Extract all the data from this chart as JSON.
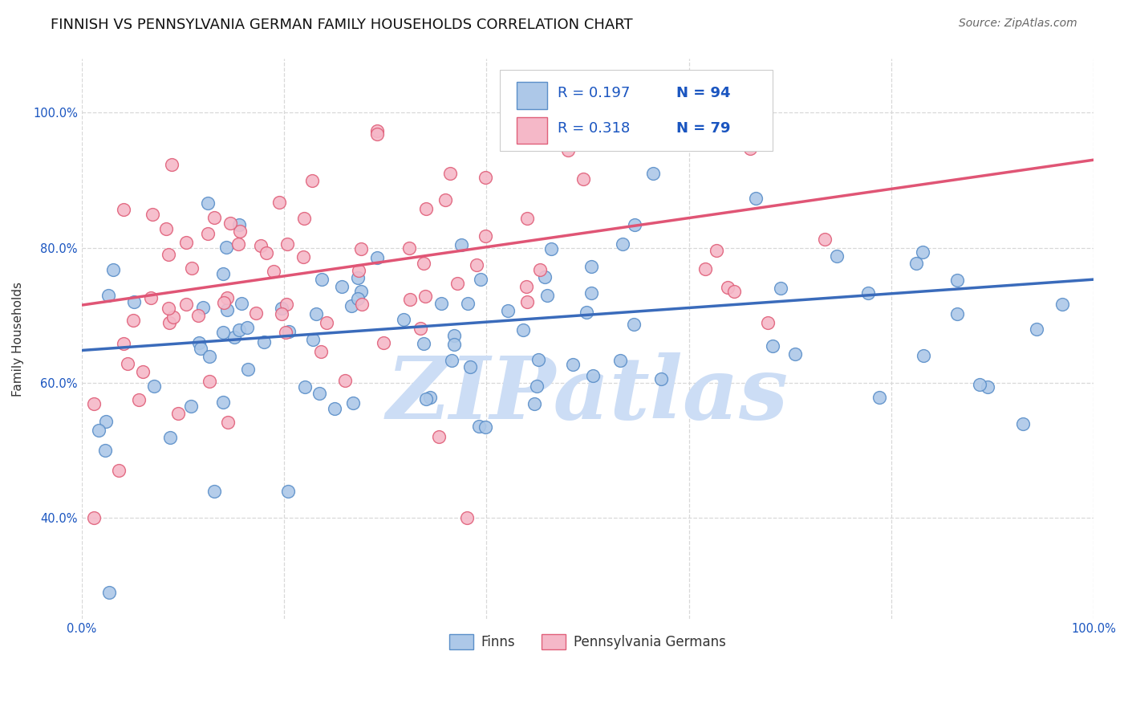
{
  "title": "FINNISH VS PENNSYLVANIA GERMAN FAMILY HOUSEHOLDS CORRELATION CHART",
  "source": "Source: ZipAtlas.com",
  "ylabel": "Family Households",
  "xmin": 0.0,
  "xmax": 1.0,
  "ymin": 0.25,
  "ymax": 1.08,
  "x_ticks": [
    0.0,
    0.2,
    0.4,
    0.6,
    0.8,
    1.0
  ],
  "y_ticks": [
    0.4,
    0.6,
    0.8,
    1.0
  ],
  "finns_color": "#adc8e8",
  "finns_edge_color": "#5b8fc9",
  "penn_color": "#f5b8c8",
  "penn_edge_color": "#e0607a",
  "trend_finns_color": "#3a6bbb",
  "trend_penn_color": "#e05575",
  "legend_label_finns": "Finns",
  "legend_label_penn": "Pennsylvania Germans",
  "r_finns": 0.197,
  "n_finns": 94,
  "r_penn": 0.318,
  "n_penn": 79,
  "r_color": "#1a55c0",
  "watermark": "ZIPatlas",
  "watermark_color": "#ccddf5",
  "background_color": "#ffffff",
  "grid_color": "#d8d8d8",
  "title_fontsize": 13,
  "axis_label_fontsize": 11,
  "tick_fontsize": 10.5,
  "source_fontsize": 10,
  "legend_fontsize": 12,
  "r_fontsize": 13,
  "trend_finns_intercept": 0.648,
  "trend_finns_slope": 0.105,
  "trend_penn_intercept": 0.715,
  "trend_penn_slope": 0.215
}
